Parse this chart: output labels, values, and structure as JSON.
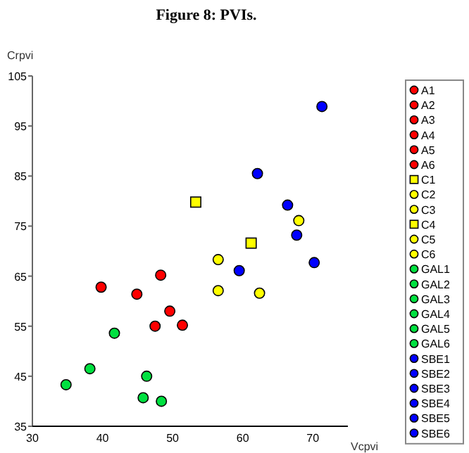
{
  "chart_data": {
    "type": "scatter",
    "title": "Figure 8: PVIs.",
    "xlabel": "Vcpvi",
    "ylabel": "Crpvi",
    "xlim": [
      30,
      75
    ],
    "ylim": [
      35,
      105
    ],
    "xticks": [
      30,
      40,
      50,
      60,
      70
    ],
    "yticks": [
      35,
      45,
      55,
      65,
      75,
      85,
      95,
      105
    ],
    "grid": false,
    "legend": "right",
    "marker": "circle",
    "series": [
      {
        "name": "A1",
        "color": "#ff0000",
        "x": [
          39.8
        ],
        "values": [
          62.8
        ]
      },
      {
        "name": "A2",
        "color": "#ff0000",
        "x": [
          44.9
        ],
        "values": [
          61.4
        ]
      },
      {
        "name": "A3",
        "color": "#ff0000",
        "x": [
          48.3
        ],
        "values": [
          65.2
        ]
      },
      {
        "name": "A4",
        "color": "#ff0000",
        "x": [
          49.6
        ],
        "values": [
          58.0
        ]
      },
      {
        "name": "A5",
        "color": "#ff0000",
        "x": [
          47.5
        ],
        "values": [
          55.0
        ]
      },
      {
        "name": "A6",
        "color": "#ff0000",
        "x": [
          51.4
        ],
        "values": [
          55.2
        ]
      },
      {
        "name": "C1",
        "color": "#ffff00",
        "x": [
          53.3
        ],
        "values": [
          79.8
        ],
        "marker": "square"
      },
      {
        "name": "C2",
        "color": "#ffff00",
        "x": [
          56.5
        ],
        "values": [
          68.3
        ]
      },
      {
        "name": "C3",
        "color": "#ffff00",
        "x": [
          56.5
        ],
        "values": [
          62.1
        ]
      },
      {
        "name": "C4",
        "color": "#ffff00",
        "x": [
          61.2
        ],
        "values": [
          71.6
        ],
        "marker": "square"
      },
      {
        "name": "C5",
        "color": "#ffff00",
        "x": [
          62.4
        ],
        "values": [
          61.6
        ]
      },
      {
        "name": "C6",
        "color": "#ffff00",
        "x": [
          68.0
        ],
        "values": [
          76.1
        ]
      },
      {
        "name": "GAL1",
        "color": "#00e040",
        "x": [
          41.7
        ],
        "values": [
          53.6
        ]
      },
      {
        "name": "GAL2",
        "color": "#00e040",
        "x": [
          38.2
        ],
        "values": [
          46.5
        ]
      },
      {
        "name": "GAL3",
        "color": "#00e040",
        "x": [
          34.8
        ],
        "values": [
          43.3
        ]
      },
      {
        "name": "GAL4",
        "color": "#00e040",
        "x": [
          46.3
        ],
        "values": [
          45.0
        ]
      },
      {
        "name": "GAL5",
        "color": "#00e040",
        "x": [
          45.8
        ],
        "values": [
          40.7
        ]
      },
      {
        "name": "GAL6",
        "color": "#00e040",
        "x": [
          48.4
        ],
        "values": [
          40.0
        ]
      },
      {
        "name": "SBE1",
        "color": "#0000ff",
        "x": [
          71.3
        ],
        "values": [
          98.9
        ]
      },
      {
        "name": "SBE2",
        "color": "#0000ff",
        "x": [
          62.1
        ],
        "values": [
          85.5
        ]
      },
      {
        "name": "SBE3",
        "color": "#0000ff",
        "x": [
          66.4
        ],
        "values": [
          79.2
        ]
      },
      {
        "name": "SBE4",
        "color": "#0000ff",
        "x": [
          67.7
        ],
        "values": [
          73.2
        ]
      },
      {
        "name": "SBE5",
        "color": "#0000ff",
        "x": [
          59.5
        ],
        "values": [
          66.1
        ]
      },
      {
        "name": "SBE6",
        "color": "#0000ff",
        "x": [
          70.2
        ],
        "values": [
          67.7
        ]
      }
    ]
  }
}
